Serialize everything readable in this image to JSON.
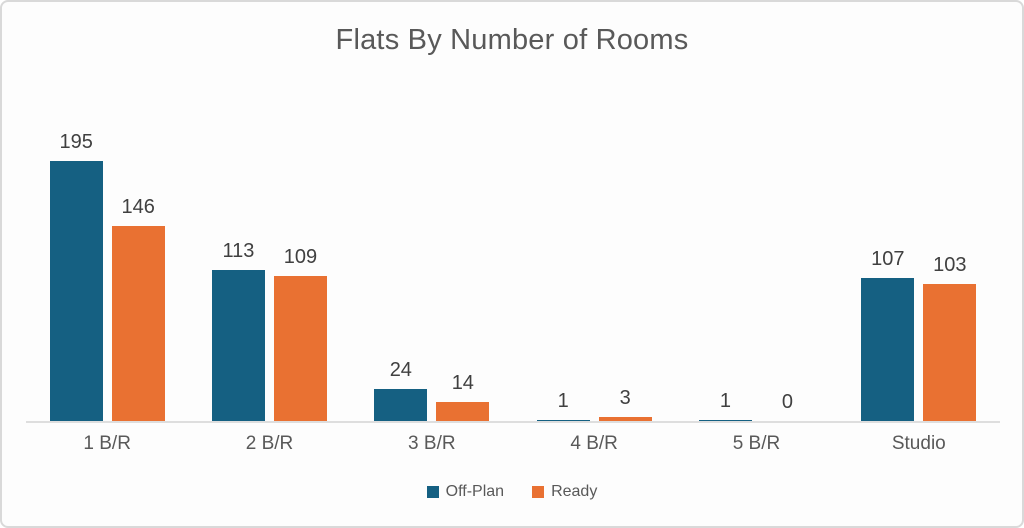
{
  "chart_data": {
    "type": "bar",
    "title": "Flats By Number of Rooms",
    "categories": [
      "1 B/R",
      "2 B/R",
      "3 B/R",
      "4 B/R",
      "5 B/R",
      "Studio"
    ],
    "series": [
      {
        "name": "Off-Plan",
        "color": "#156082",
        "values": [
          195,
          113,
          24,
          1,
          1,
          107
        ]
      },
      {
        "name": "Ready",
        "color": "#E97132",
        "values": [
          146,
          109,
          14,
          3,
          0,
          103
        ]
      }
    ],
    "xlabel": "",
    "ylabel": "",
    "ylim": [
      0,
      200
    ],
    "grid": false,
    "data_labels": true,
    "legend_position": "bottom"
  },
  "colors": {
    "title_text": "#595959",
    "data_label_text": "#404040",
    "axis_label_text": "#595959",
    "axis_line": "#dedede",
    "frame_border": "#d9d9d9",
    "background": "#fdfdfd"
  }
}
